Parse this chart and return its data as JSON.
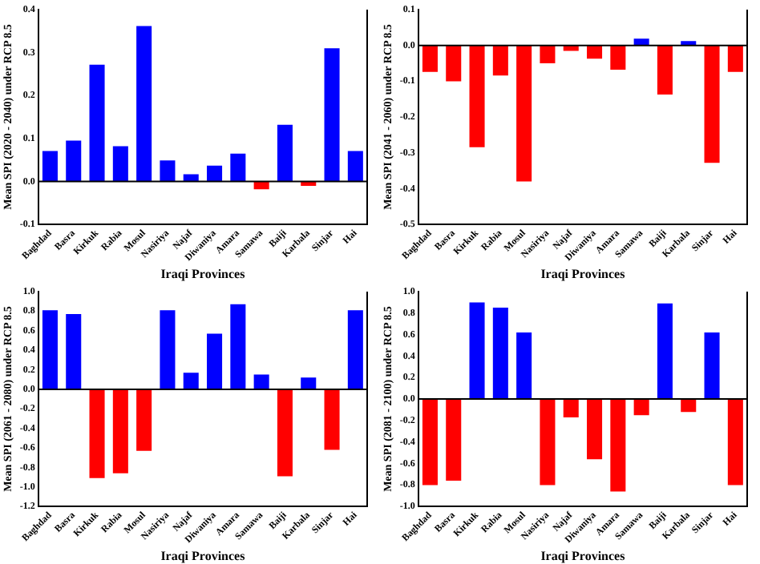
{
  "chart_data": [
    {
      "type": "bar",
      "categories": [
        "Baghdad",
        "Basra",
        "Kirkuk",
        "Rabia",
        "Mosul",
        "Nasiriya",
        "Najaf",
        "Diwaniya",
        "Amara",
        "Samawa",
        "Baiji",
        "Karbala",
        "Sinjar",
        "Hai"
      ],
      "values": [
        0.071,
        0.095,
        0.272,
        0.082,
        0.362,
        0.049,
        0.017,
        0.037,
        0.065,
        -0.018,
        0.132,
        -0.01,
        0.31,
        0.071
      ],
      "colors": [
        "#0000ff",
        "#0000ff",
        "#0000ff",
        "#0000ff",
        "#0000ff",
        "#0000ff",
        "#0000ff",
        "#0000ff",
        "#0000ff",
        "#ff0000",
        "#0000ff",
        "#ff0000",
        "#0000ff",
        "#0000ff"
      ],
      "xlabel": "Iraqi Provinces",
      "ylabel": "Mean SPI (2020 - 2040) under RCP 8.5",
      "ylim": [
        -0.1,
        0.4
      ],
      "yticks": [
        -0.1,
        {
          "value": 0,
          "label": "0.0"
        },
        0.1,
        0.2,
        0.3,
        0.4
      ],
      "ref_lines": [
        {
          "axis": "y",
          "value": 0,
          "color": "#000000"
        }
      ],
      "legend": false
    },
    {
      "type": "bar",
      "categories": [
        "Baghdad",
        "Basra",
        "Kirkuk",
        "Rabia",
        "Mosul",
        "Nasiriya",
        "Najaf",
        "Diwaniya",
        "Amara",
        "Samawa",
        "Baiji",
        "Karbala",
        "Sinjar",
        "Hai"
      ],
      "values": [
        -0.074,
        -0.1,
        -0.284,
        -0.084,
        -0.38,
        -0.05,
        -0.015,
        -0.037,
        -0.068,
        0.019,
        -0.137,
        0.012,
        -0.328,
        -0.074
      ],
      "colors": [
        "#ff0000",
        "#ff0000",
        "#ff0000",
        "#ff0000",
        "#ff0000",
        "#ff0000",
        "#ff0000",
        "#ff0000",
        "#ff0000",
        "#0000ff",
        "#ff0000",
        "#0000ff",
        "#ff0000",
        "#ff0000"
      ],
      "xlabel": "Iraqi Provinces",
      "ylabel": "Mean SPI (2041 - 2060) under RCP 8.5",
      "ylim": [
        -0.5,
        0.1
      ],
      "yticks": [
        -0.5,
        -0.4,
        -0.3,
        -0.2,
        -0.1,
        {
          "value": 0,
          "label": "0.0"
        },
        0.1
      ],
      "ref_lines": [
        {
          "axis": "y",
          "value": 0,
          "color": "#000000"
        }
      ],
      "legend": false
    },
    {
      "type": "bar",
      "categories": [
        "Baghdad",
        "Basra",
        "Kirkuk",
        "Rabia",
        "Mosul",
        "Nasiriya",
        "Najaf",
        "Diwaniya",
        "Amara",
        "Samawa",
        "Baiji",
        "Karbala",
        "Sinjar",
        "Hai"
      ],
      "values": [
        0.81,
        0.77,
        -0.91,
        -0.86,
        -0.63,
        0.81,
        0.17,
        0.57,
        0.87,
        0.15,
        -0.89,
        0.12,
        -0.62,
        0.81
      ],
      "colors": [
        "#0000ff",
        "#0000ff",
        "#ff0000",
        "#ff0000",
        "#ff0000",
        "#0000ff",
        "#0000ff",
        "#0000ff",
        "#0000ff",
        "#0000ff",
        "#ff0000",
        "#0000ff",
        "#ff0000",
        "#0000ff"
      ],
      "xlabel": "Iraqi Provinces",
      "ylabel": "Mean SPI (2061 - 2080) under RCP 8.5",
      "ylim": [
        -1.2,
        1
      ],
      "yticks": [
        -1.2,
        {
          "value": -1,
          "label": "-1.0"
        },
        -0.8,
        -0.6,
        -0.4,
        -0.2,
        {
          "value": 0,
          "label": "0.0"
        },
        0.2,
        0.4,
        0.6,
        0.8,
        {
          "value": 1,
          "label": "1.0"
        }
      ],
      "ref_lines": [
        {
          "axis": "y",
          "value": 0,
          "color": "#000000"
        }
      ],
      "legend": false
    },
    {
      "type": "bar",
      "categories": [
        "Baghdad",
        "Basra",
        "Kirkuk",
        "Rabia",
        "Mosul",
        "Nasiriya",
        "Najaf",
        "Diwaniya",
        "Amara",
        "Samawa",
        "Baiji",
        "Karbala",
        "Sinjar",
        "Hai"
      ],
      "values": [
        -0.8,
        -0.76,
        0.9,
        0.85,
        0.62,
        -0.8,
        -0.17,
        -0.56,
        -0.86,
        -0.15,
        0.89,
        -0.12,
        0.62,
        -0.8
      ],
      "colors": [
        "#ff0000",
        "#ff0000",
        "#0000ff",
        "#0000ff",
        "#0000ff",
        "#ff0000",
        "#ff0000",
        "#ff0000",
        "#ff0000",
        "#ff0000",
        "#0000ff",
        "#ff0000",
        "#0000ff",
        "#ff0000"
      ],
      "xlabel": "Iraqi Provinces",
      "ylabel": "Mean SPI (2081 - 2100) under RCP 8.5",
      "ylim": [
        -1,
        1
      ],
      "yticks": [
        {
          "value": -1,
          "label": "-1.0"
        },
        -0.8,
        -0.6,
        -0.4,
        -0.2,
        {
          "value": 0,
          "label": "0.0"
        },
        0.2,
        0.4,
        0.6,
        0.8,
        {
          "value": 1,
          "label": "1.0"
        }
      ],
      "ref_lines": [
        {
          "axis": "y",
          "value": 0,
          "color": "#000000"
        }
      ],
      "legend": false
    }
  ]
}
